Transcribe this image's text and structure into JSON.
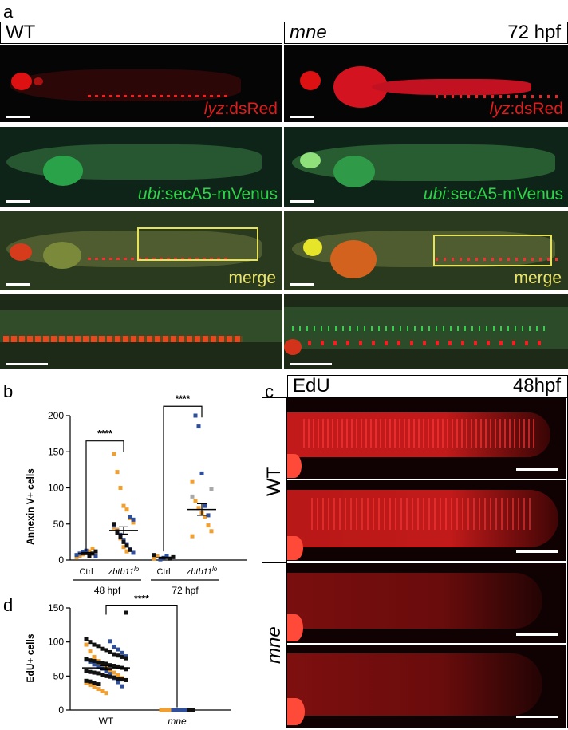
{
  "panels": {
    "a": {
      "letter": "a",
      "left_header": "WT",
      "right_header_genotype": "mne",
      "right_header_stage": "72 hpf",
      "rows": [
        {
          "gene": "lyz",
          "suffix": ":dsRed",
          "color": "#e01c1c"
        },
        {
          "gene": "ubi",
          "suffix": ":secA5-mVenus",
          "color": "#2fd34a"
        },
        {
          "label": "merge",
          "color": "#e8e36a"
        }
      ]
    },
    "b": {
      "letter": "b",
      "chart_data": {
        "type": "scatter",
        "ylabel": "Annexin V+ cells",
        "ylim": [
          0,
          200
        ],
        "yticks": [
          0,
          50,
          100,
          150,
          200
        ],
        "groups": [
          {
            "label": "Ctrl",
            "stage": "48 hpf",
            "mean": 9,
            "sem": 1.5,
            "orange": [
              4,
              6,
              8,
              10,
              12,
              16
            ],
            "blue": [
              5,
              7,
              9,
              11,
              13
            ],
            "black": [
              6,
              9,
              12
            ]
          },
          {
            "label": "zbtb11",
            "label_sup": "lo",
            "stage": "48 hpf",
            "mean": 41,
            "sem": 5,
            "orange": [
              147,
              122,
              100,
              75,
              70,
              58,
              52,
              45,
              42,
              30,
              18,
              12
            ],
            "blue": [
              60,
              56,
              48,
              40,
              35,
              28,
              22,
              15,
              10
            ],
            "black": [
              50,
              38,
              32,
              25,
              20,
              14
            ]
          },
          {
            "label": "Ctrl",
            "stage": "72 hpf",
            "mean": 3,
            "sem": 1,
            "orange": [
              2,
              5
            ],
            "blue": [
              1,
              3,
              6
            ],
            "black": [
              2,
              4,
              7
            ]
          },
          {
            "label": "zbtb11",
            "label_sup": "lo",
            "stage": "72 hpf",
            "mean": 70,
            "sem": 8,
            "orange": [
              108,
              82,
              72,
              65,
              60,
              48,
              40,
              33
            ],
            "blue": [
              200,
              185,
              120,
              75,
              62
            ],
            "grey": [
              98,
              88
            ]
          }
        ],
        "stage_labels": [
          "48 hpf",
          "72 hpf"
        ],
        "significance": [
          "****",
          "****"
        ]
      }
    },
    "c": {
      "letter": "c",
      "header_left": "EdU",
      "header_right": "48hpf",
      "side_labels": [
        "WT",
        "mne"
      ]
    },
    "d": {
      "letter": "d",
      "chart_data": {
        "type": "scatter",
        "ylabel": "EdU+ cells",
        "ylim": [
          0,
          150
        ],
        "yticks": [
          0,
          50,
          100,
          150
        ],
        "categories": [
          "WT",
          "mne"
        ],
        "significance": "****",
        "groups": [
          {
            "label": "WT",
            "mean": 62,
            "sem": 3,
            "black": [
              143,
              104,
              100,
              96,
              94,
              90,
              88,
              85,
              82,
              80,
              78,
              76,
              75,
              73,
              72,
              70,
              69,
              68,
              66,
              65,
              64,
              62,
              60,
              58,
              56,
              55,
              54,
              52,
              50,
              49,
              48,
              46,
              45,
              44,
              43,
              42,
              40,
              38
            ],
            "blue": [
              101,
              93,
              89,
              84,
              79,
              74,
              71,
              67,
              63,
              61,
              57,
              53,
              47,
              41,
              35
            ],
            "orange": [
              96,
              86,
              78,
              72,
              68,
              64,
              58,
              55,
              51,
              47,
              44,
              40,
              37,
              34,
              31,
              28,
              25
            ]
          },
          {
            "label": "mne",
            "mean": 0,
            "sem": 0,
            "black": [
              0,
              0
            ],
            "blue": [
              0,
              0,
              0,
              0
            ],
            "orange": [
              0,
              0,
              0
            ]
          }
        ]
      }
    }
  }
}
